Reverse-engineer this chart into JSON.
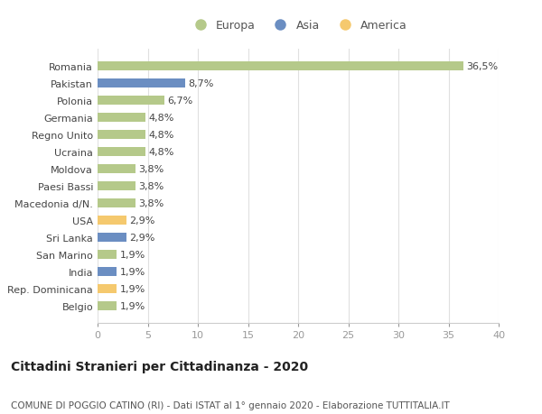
{
  "countries": [
    "Romania",
    "Pakistan",
    "Polonia",
    "Germania",
    "Regno Unito",
    "Ucraina",
    "Moldova",
    "Paesi Bassi",
    "Macedonia d/N.",
    "USA",
    "Sri Lanka",
    "San Marino",
    "India",
    "Rep. Dominicana",
    "Belgio"
  ],
  "values": [
    36.5,
    8.7,
    6.7,
    4.8,
    4.8,
    4.8,
    3.8,
    3.8,
    3.8,
    2.9,
    2.9,
    1.9,
    1.9,
    1.9,
    1.9
  ],
  "labels": [
    "36,5%",
    "8,7%",
    "6,7%",
    "4,8%",
    "4,8%",
    "4,8%",
    "3,8%",
    "3,8%",
    "3,8%",
    "2,9%",
    "2,9%",
    "1,9%",
    "1,9%",
    "1,9%",
    "1,9%"
  ],
  "continents": [
    "Europa",
    "Asia",
    "Europa",
    "Europa",
    "Europa",
    "Europa",
    "Europa",
    "Europa",
    "Europa",
    "America",
    "Asia",
    "Europa",
    "Asia",
    "America",
    "Europa"
  ],
  "colors": {
    "Europa": "#b5c98a",
    "Asia": "#6b8ec2",
    "America": "#f5c96e"
  },
  "legend_order": [
    "Europa",
    "Asia",
    "America"
  ],
  "xlim": [
    0,
    40
  ],
  "xticks": [
    0,
    5,
    10,
    15,
    20,
    25,
    30,
    35,
    40
  ],
  "title": "Cittadini Stranieri per Cittadinanza - 2020",
  "subtitle": "COMUNE DI POGGIO CATINO (RI) - Dati ISTAT al 1° gennaio 2020 - Elaborazione TUTTITALIA.IT",
  "background_color": "#ffffff",
  "grid_color": "#e0e0e0",
  "bar_height": 0.5,
  "label_fontsize": 8,
  "tick_fontsize": 8,
  "title_fontsize": 10,
  "subtitle_fontsize": 7.5,
  "text_color": "#555555",
  "label_color": "#444444"
}
